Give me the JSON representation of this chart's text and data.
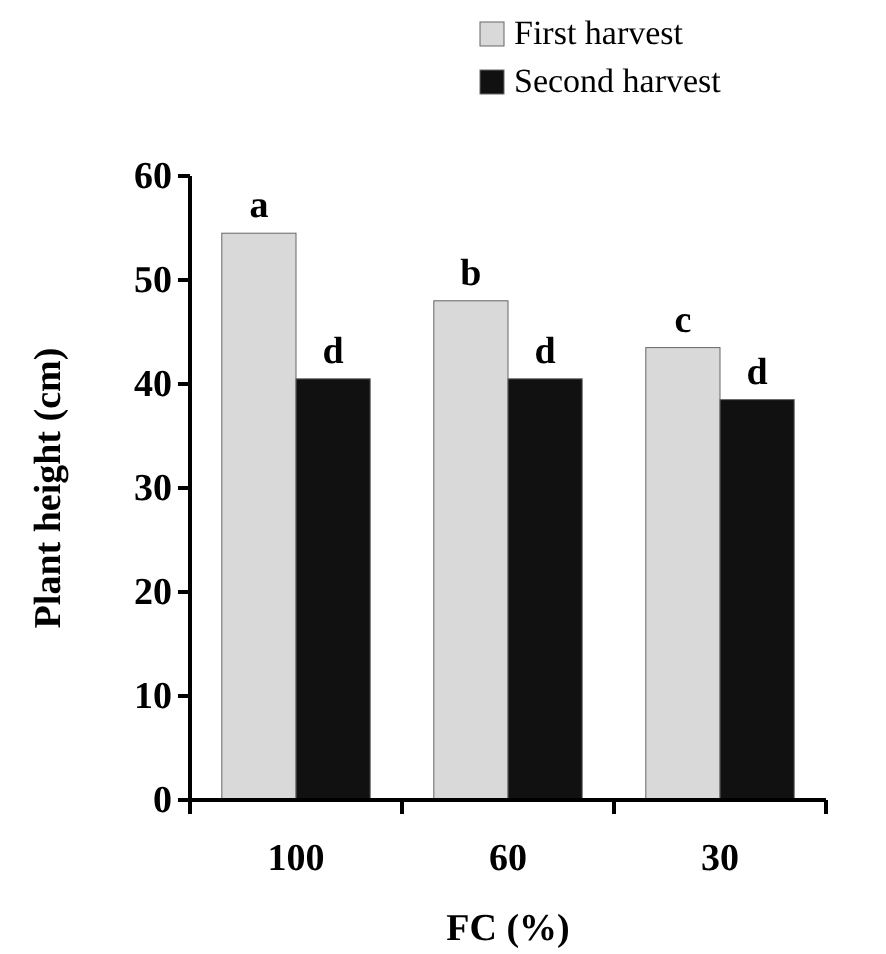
{
  "chart_data": {
    "type": "bar",
    "xlabel": "FC (%)",
    "ylabel": "Plant height (cm)",
    "categories": [
      "100",
      "60",
      "30"
    ],
    "series": [
      {
        "name": "First harvest",
        "color": "#d9d9d9",
        "values": [
          54.5,
          48,
          43.5
        ]
      },
      {
        "name": "Second harvest",
        "color": "#111111",
        "values": [
          40.5,
          40.5,
          38.5
        ]
      }
    ],
    "ylim": [
      0,
      60
    ],
    "yticks": [
      0,
      10,
      20,
      30,
      40,
      50,
      60
    ],
    "grid": false,
    "legend": "top right",
    "annotations": [
      {
        "text": "a",
        "x": "100",
        "y": 54.5
      },
      {
        "text": "b",
        "x": "60",
        "y": 48
      },
      {
        "text": "c",
        "x": "30",
        "y": 43.5
      },
      {
        "text": "d",
        "x": "100",
        "y": 40.5
      },
      {
        "text": "d",
        "x": "60",
        "y": 40.5
      },
      {
        "text": "d",
        "x": "30",
        "y": 38.5
      }
    ]
  }
}
